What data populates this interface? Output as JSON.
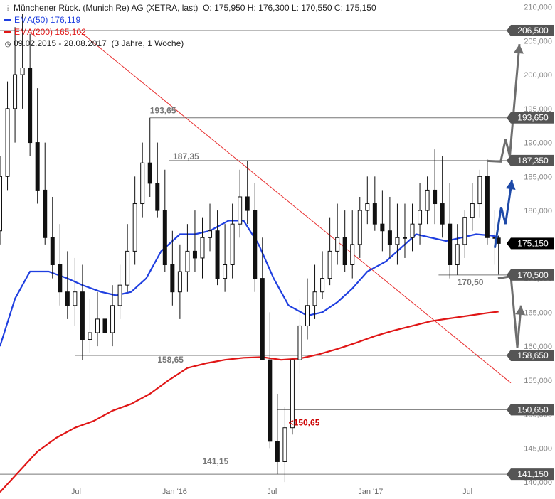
{
  "header": {
    "title": "Münchener Rück. (Munich Re) AG (XETRA, last)",
    "ohlc": "O: 175,950  H: 176,300  L: 170,550  C: 175,150",
    "ema50_label": "EMA(50)",
    "ema50_value": "176,119",
    "ema200_label": "EMA(200)",
    "ema200_value": "165,102",
    "period": "09.02.2015 - 28.08.2017",
    "period_note": "(3 Jahre, 1 Woche)",
    "chart_icon": "candlestick-icon",
    "clock_icon": "clock-icon"
  },
  "colors": {
    "ema50": "#1f3fe0",
    "ema200": "#e01616",
    "trendline": "#e83030",
    "candle": "#111111",
    "level_line": "#777777",
    "arrow_gray": "#6e6e6e",
    "arrow_blue": "#1e4aa8",
    "badge_gray": "#555555",
    "badge_black": "#000000",
    "annotation_gray": "#777777",
    "annotation_red": "#cc0000"
  },
  "chart_data": {
    "type": "candlestick",
    "title": "Münchener Rück. (Munich Re) AG (XETRA, last)",
    "ylim": [
      137500,
      211000
    ],
    "y_ticks": [
      "140,000",
      "145,000",
      "150,000",
      "155,000",
      "160,000",
      "165,000",
      "170,000",
      "175,000",
      "180,000",
      "185,000",
      "190,000",
      "195,000",
      "200,000",
      "205,000",
      "210,000"
    ],
    "y_tick_values": [
      140000,
      145000,
      150000,
      155000,
      160000,
      165000,
      170000,
      175000,
      180000,
      185000,
      190000,
      195000,
      200000,
      205000,
      210000
    ],
    "x_ticks": [
      "Jul",
      "Jan '16",
      "Jul",
      "Jan '17",
      "Jul"
    ],
    "x_tick_dates": [
      "2015-07-01",
      "2016-01-01",
      "2016-07-01",
      "2017-01-01",
      "2017-07-01"
    ],
    "x_range": [
      "2015-02-09",
      "2017-09-20"
    ],
    "grid": false,
    "price_levels": [
      {
        "value": 206500,
        "label": "206,500"
      },
      {
        "value": 193650,
        "label": "193,650",
        "annotation": "193,65"
      },
      {
        "value": 187350,
        "label": "187,350",
        "annotation": "187,35"
      },
      {
        "value": 170500,
        "label": "170,500",
        "annotation": "170,50"
      },
      {
        "value": 158650,
        "label": "158,650",
        "annotation": "158,65"
      },
      {
        "value": 150650,
        "label": "150,650",
        "annotation": "<150,65"
      },
      {
        "value": 141150,
        "label": "141,150",
        "annotation": "141,15"
      }
    ],
    "last_price": {
      "value": 175150,
      "label": "175,150"
    },
    "ema50": {
      "name": "EMA(50)",
      "dates": [
        "2015-02-09",
        "2015-03-09",
        "2015-04-06",
        "2015-05-11",
        "2015-06-15",
        "2015-07-13",
        "2015-08-17",
        "2015-09-14",
        "2015-10-12",
        "2015-11-09",
        "2015-12-07",
        "2016-01-11",
        "2016-02-08",
        "2016-03-07",
        "2016-04-11",
        "2016-05-09",
        "2016-06-06",
        "2016-07-04",
        "2016-08-01",
        "2016-09-05",
        "2016-10-03",
        "2016-10-31",
        "2016-11-28",
        "2016-12-26",
        "2017-01-30",
        "2017-02-27",
        "2017-03-27",
        "2017-04-24",
        "2017-05-22",
        "2017-06-19",
        "2017-07-17",
        "2017-08-14",
        "2017-08-28"
      ],
      "values": [
        160000,
        167000,
        171000,
        171000,
        170000,
        169000,
        168000,
        167500,
        168000,
        170000,
        174000,
        176500,
        176500,
        177000,
        178500,
        178500,
        175000,
        170000,
        166000,
        164500,
        165000,
        166500,
        168500,
        171000,
        172500,
        174500,
        176500,
        176000,
        175500,
        176000,
        176500,
        176300,
        176100
      ]
    },
    "ema200": {
      "name": "EMA(200)",
      "dates": [
        "2015-02-09",
        "2015-03-16",
        "2015-04-20",
        "2015-05-25",
        "2015-06-29",
        "2015-08-03",
        "2015-09-07",
        "2015-10-12",
        "2015-11-16",
        "2015-12-21",
        "2016-01-25",
        "2016-02-29",
        "2016-04-04",
        "2016-05-09",
        "2016-06-13",
        "2016-07-18",
        "2016-08-22",
        "2016-09-26",
        "2016-10-31",
        "2016-12-05",
        "2017-01-09",
        "2017-02-13",
        "2017-03-20",
        "2017-04-24",
        "2017-05-29",
        "2017-07-03",
        "2017-08-07",
        "2017-08-28"
      ],
      "values": [
        138500,
        141500,
        144500,
        146500,
        148000,
        149000,
        150500,
        151500,
        153000,
        155000,
        156800,
        157500,
        158000,
        158300,
        158400,
        158000,
        158200,
        158800,
        159600,
        160500,
        161500,
        162300,
        163000,
        163700,
        164100,
        164500,
        164900,
        165100
      ]
    },
    "trendline": {
      "start": {
        "date": "2015-07-06",
        "value": 206500
      },
      "end": {
        "date": "2017-09-20",
        "value": 154600
      }
    },
    "candles_note": "Weekly closes (approx.)",
    "candles": {
      "dates": [
        "2015-02-09",
        "2015-02-23",
        "2015-03-09",
        "2015-03-23",
        "2015-04-06",
        "2015-04-20",
        "2015-05-04",
        "2015-05-18",
        "2015-06-01",
        "2015-06-15",
        "2015-06-29",
        "2015-07-13",
        "2015-07-27",
        "2015-08-10",
        "2015-08-24",
        "2015-09-07",
        "2015-09-21",
        "2015-10-05",
        "2015-10-19",
        "2015-11-02",
        "2015-11-16",
        "2015-11-30",
        "2015-12-14",
        "2015-12-28",
        "2016-01-11",
        "2016-01-25",
        "2016-02-08",
        "2016-02-22",
        "2016-03-07",
        "2016-03-21",
        "2016-04-04",
        "2016-04-18",
        "2016-05-02",
        "2016-05-16",
        "2016-05-30",
        "2016-06-13",
        "2016-06-27",
        "2016-07-11",
        "2016-07-25",
        "2016-08-08",
        "2016-08-22",
        "2016-09-05",
        "2016-09-19",
        "2016-10-03",
        "2016-10-17",
        "2016-10-31",
        "2016-11-14",
        "2016-11-28",
        "2016-12-12",
        "2016-12-26",
        "2017-01-09",
        "2017-01-23",
        "2017-02-06",
        "2017-02-20",
        "2017-03-06",
        "2017-03-20",
        "2017-04-03",
        "2017-04-17",
        "2017-05-01",
        "2017-05-15",
        "2017-05-29",
        "2017-06-12",
        "2017-06-26",
        "2017-07-10",
        "2017-07-24",
        "2017-08-07",
        "2017-08-21",
        "2017-08-28"
      ],
      "open": [
        177000,
        185000,
        195000,
        200000,
        201000,
        190000,
        183000,
        176000,
        172000,
        168000,
        166000,
        168000,
        161000,
        162000,
        164000,
        162000,
        166000,
        169000,
        174000,
        181000,
        187000,
        184000,
        180000,
        172000,
        168000,
        171000,
        174000,
        173000,
        176000,
        177000,
        170000,
        172000,
        178000,
        182000,
        180000,
        170000,
        158000,
        146000,
        143000,
        148000,
        158000,
        163000,
        166000,
        168000,
        170000,
        174000,
        176000,
        172000,
        175000,
        180000,
        181000,
        178000,
        177000,
        175000,
        176000,
        176000,
        178000,
        180000,
        183000,
        181000,
        178000,
        172000,
        175000,
        179000,
        181000,
        185000,
        176000,
        175950
      ],
      "high": [
        188000,
        199000,
        207000,
        209000,
        206000,
        198000,
        190000,
        182000,
        178000,
        174000,
        173000,
        172000,
        167000,
        168000,
        170000,
        169000,
        172000,
        178000,
        185000,
        190000,
        193650,
        190000,
        186000,
        177000,
        175000,
        178000,
        180000,
        179000,
        181000,
        180000,
        178000,
        181000,
        186000,
        187350,
        184000,
        176000,
        165000,
        153000,
        151000,
        158000,
        167000,
        170000,
        172000,
        174000,
        179000,
        181000,
        180000,
        180000,
        182000,
        185000,
        185000,
        183000,
        182000,
        181000,
        181000,
        181000,
        184000,
        185000,
        189000,
        188000,
        184000,
        178000,
        180000,
        184000,
        186000,
        187500,
        180000,
        176300
      ],
      "low": [
        175000,
        183000,
        190000,
        195000,
        188000,
        181000,
        175000,
        170000,
        166000,
        164000,
        163000,
        158000,
        159000,
        160000,
        161000,
        160000,
        164000,
        168000,
        172000,
        179000,
        182000,
        179000,
        171000,
        166000,
        164000,
        168000,
        171000,
        170000,
        174000,
        169000,
        168000,
        170000,
        176000,
        178000,
        168000,
        158000,
        145000,
        141150,
        140000,
        147000,
        156000,
        161000,
        164000,
        167000,
        169000,
        172000,
        171000,
        170000,
        173000,
        178000,
        177000,
        174000,
        173000,
        172000,
        173000,
        174000,
        175000,
        178000,
        178000,
        176000,
        170000,
        170500,
        173000,
        177000,
        179000,
        175000,
        172000,
        170550
      ],
      "close": [
        185000,
        195000,
        200000,
        201000,
        190000,
        183000,
        176000,
        172000,
        168000,
        166000,
        168000,
        161000,
        162000,
        164000,
        162000,
        166000,
        169000,
        174000,
        181000,
        187000,
        184000,
        180000,
        172000,
        168000,
        171000,
        174000,
        173000,
        176000,
        177000,
        170000,
        172000,
        178000,
        182000,
        180000,
        170000,
        158000,
        146000,
        143000,
        148000,
        158000,
        163000,
        166000,
        168000,
        170000,
        174000,
        176000,
        172000,
        175000,
        180000,
        181000,
        178000,
        177000,
        175000,
        176000,
        176000,
        178000,
        180000,
        183000,
        181000,
        178000,
        172000,
        175000,
        179000,
        181000,
        185000,
        176000,
        175950,
        175150
      ]
    },
    "scenario_arrows": [
      {
        "color": "gray",
        "direction": "up",
        "path": [
          {
            "date": "2017-08-07",
            "value": 187300
          },
          {
            "date": "2017-09-01",
            "value": 187200
          },
          {
            "date": "2017-09-10",
            "value": 190500
          },
          {
            "date": "2017-09-18",
            "value": 188000
          },
          {
            "date": "2017-10-06",
            "value": 204500
          }
        ]
      },
      {
        "color": "blue",
        "direction": "up",
        "path": [
          {
            "date": "2017-08-21",
            "value": 174500
          },
          {
            "date": "2017-09-02",
            "value": 180500
          },
          {
            "date": "2017-09-10",
            "value": 178000
          },
          {
            "date": "2017-09-22",
            "value": 184500
          }
        ]
      },
      {
        "color": "gray",
        "direction": "up",
        "path": [
          {
            "date": "2017-08-27",
            "value": 170000
          },
          {
            "date": "2017-09-20",
            "value": 170300
          },
          {
            "date": "2017-10-02",
            "value": 159800
          },
          {
            "date": "2017-10-09",
            "value": 166000
          }
        ]
      }
    ]
  }
}
